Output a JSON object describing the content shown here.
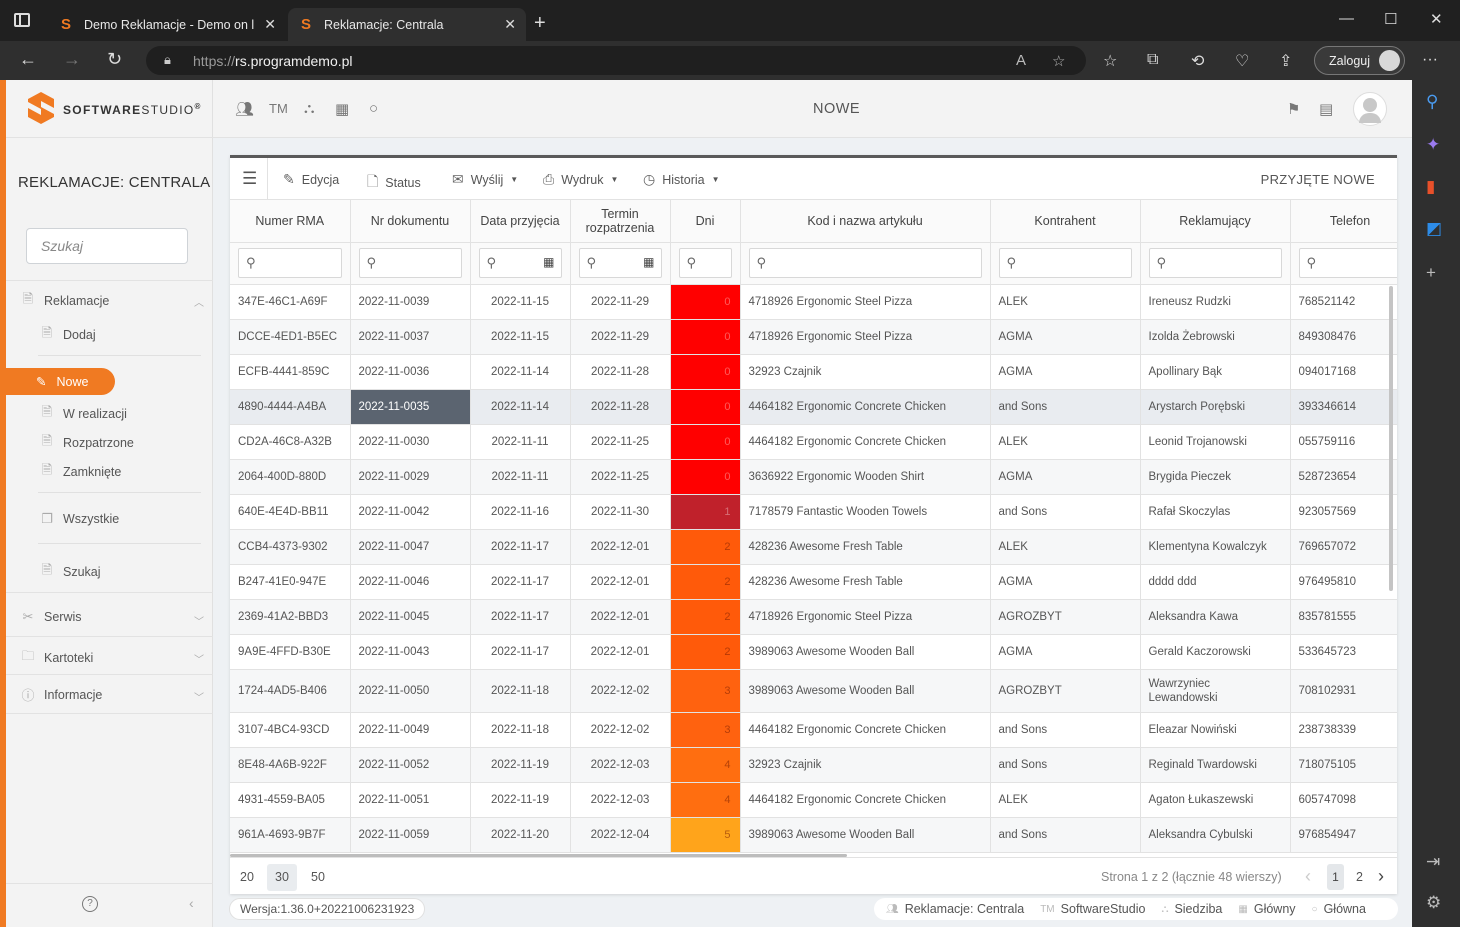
{
  "browser": {
    "tabs": [
      {
        "title": "Demo Reklamacje - Demo on lin"
      },
      {
        "title": "Reklamacje: Centrala"
      }
    ],
    "url_protocol": "https://",
    "url_host": "rs.programdemo.pl",
    "login_label": "Zaloguj"
  },
  "brand": {
    "name_bold": "SOFTWARE",
    "name_light": "STUDIO",
    "reg": "®"
  },
  "sidebar": {
    "title": "REKLAMACJE: CENTRALA",
    "search_placeholder": "Szukaj",
    "reklamacje": "Reklamacje",
    "dodaj": "Dodaj",
    "nowe": "Nowe",
    "w_realizacji": "W realizacji",
    "rozpatrzone": "Rozpatrzone",
    "zamkniete": "Zamknięte",
    "wszystkie": "Wszystkie",
    "szukaj": "Szukaj",
    "serwis": "Serwis",
    "kartoteki": "Kartoteki",
    "informacje": "Informacje"
  },
  "topbar": {
    "tm_label": "TM",
    "title": "NOWE"
  },
  "toolbar": {
    "edycja": "Edycja",
    "status": "Status",
    "wyslij": "Wyślij",
    "wydruk": "Wydruk",
    "historia": "Historia",
    "right_label": "PRZYJĘTE NOWE"
  },
  "columns": [
    "Numer RMA",
    "Nr dokumentu",
    "Data przyjęcia",
    "Termin rozpatrzenia",
    "Dni",
    "Kod i nazwa artykułu",
    "Kontrahent",
    "Reklamujący",
    "Telefon"
  ],
  "colors": {
    "accent": "#f07a22",
    "days_0": "#ff0000",
    "days_1": "#c0212b",
    "days_2": "#ff5a0a",
    "days_3": "#ff620f",
    "days_4": "#ff6e10",
    "days_5": "#ffa41b"
  },
  "rows": [
    {
      "rma": "347E-46C1-A69F",
      "doc": "2022-11-0039",
      "date": "2022-11-15",
      "due": "2022-11-29",
      "days": "0",
      "item": "4718926 Ergonomic Steel Pizza",
      "client": "ALEK",
      "person": "Ireneusz Rudzki",
      "phone": "768521142"
    },
    {
      "rma": "DCCE-4ED1-B5EC",
      "doc": "2022-11-0037",
      "date": "2022-11-15",
      "due": "2022-11-29",
      "days": "0",
      "item": "4718926 Ergonomic Steel Pizza",
      "client": "AGMA",
      "person": "Izolda Żebrowski",
      "phone": "849308476"
    },
    {
      "rma": "ECFB-4441-859C",
      "doc": "2022-11-0036",
      "date": "2022-11-14",
      "due": "2022-11-28",
      "days": "0",
      "item": "32923 Czajnik",
      "client": "AGMA",
      "person": "Apollinary Bąk",
      "phone": "094017168"
    },
    {
      "rma": "4890-4444-A4BA",
      "doc": "2022-11-0035",
      "date": "2022-11-14",
      "due": "2022-11-28",
      "days": "0",
      "item": "4464182 Ergonomic Concrete Chicken",
      "client": "and Sons",
      "person": "Arystarch Porębski",
      "phone": "393346614"
    },
    {
      "rma": "CD2A-46C8-A32B",
      "doc": "2022-11-0030",
      "date": "2022-11-11",
      "due": "2022-11-25",
      "days": "0",
      "item": "4464182 Ergonomic Concrete Chicken",
      "client": "ALEK",
      "person": "Leonid Trojanowski",
      "phone": "055759116"
    },
    {
      "rma": "2064-400D-880D",
      "doc": "2022-11-0029",
      "date": "2022-11-11",
      "due": "2022-11-25",
      "days": "0",
      "item": "3636922 Ergonomic Wooden Shirt",
      "client": "AGMA",
      "person": "Brygida Pieczek",
      "phone": "528723654"
    },
    {
      "rma": "640E-4E4D-BB11",
      "doc": "2022-11-0042",
      "date": "2022-11-16",
      "due": "2022-11-30",
      "days": "1",
      "item": "7178579 Fantastic Wooden Towels",
      "client": "and Sons",
      "person": "Rafał Skoczylas",
      "phone": "923057569"
    },
    {
      "rma": "CCB4-4373-9302",
      "doc": "2022-11-0047",
      "date": "2022-11-17",
      "due": "2022-12-01",
      "days": "2",
      "item": "428236 Awesome Fresh Table",
      "client": "ALEK",
      "person": "Klementyna Kowalczyk",
      "phone": "769657072"
    },
    {
      "rma": "B247-41E0-947E",
      "doc": "2022-11-0046",
      "date": "2022-11-17",
      "due": "2022-12-01",
      "days": "2",
      "item": "428236 Awesome Fresh Table",
      "client": "AGMA",
      "person": "dddd ddd",
      "phone": "976495810"
    },
    {
      "rma": "2369-41A2-BBD3",
      "doc": "2022-11-0045",
      "date": "2022-11-17",
      "due": "2022-12-01",
      "days": "2",
      "item": "4718926 Ergonomic Steel Pizza",
      "client": "AGROZBYT",
      "person": "Aleksandra Kawa",
      "phone": "835781555"
    },
    {
      "rma": "9A9E-4FFD-B30E",
      "doc": "2022-11-0043",
      "date": "2022-11-17",
      "due": "2022-12-01",
      "days": "2",
      "item": "3989063 Awesome Wooden Ball",
      "client": "AGMA",
      "person": "Gerald Kaczorowski",
      "phone": "533645723"
    },
    {
      "rma": "1724-4AD5-B406",
      "doc": "2022-11-0050",
      "date": "2022-11-18",
      "due": "2022-12-02",
      "days": "3",
      "item": "3989063 Awesome Wooden Ball",
      "client": "AGROZBYT",
      "person": "Wawrzyniec Lewandowski",
      "phone": "708102931"
    },
    {
      "rma": "3107-4BC4-93CD",
      "doc": "2022-11-0049",
      "date": "2022-11-18",
      "due": "2022-12-02",
      "days": "3",
      "item": "4464182 Ergonomic Concrete Chicken",
      "client": "and Sons",
      "person": "Eleazar Nowiński",
      "phone": "238738339"
    },
    {
      "rma": "8E48-4A6B-922F",
      "doc": "2022-11-0052",
      "date": "2022-11-19",
      "due": "2022-12-03",
      "days": "4",
      "item": "32923 Czajnik",
      "client": "and Sons",
      "person": "Reginald Twardowski",
      "phone": "718075105"
    },
    {
      "rma": "4931-4559-BA05",
      "doc": "2022-11-0051",
      "date": "2022-11-19",
      "due": "2022-12-03",
      "days": "4",
      "item": "4464182 Ergonomic Concrete Chicken",
      "client": "ALEK",
      "person": "Agaton Łukaszewski",
      "phone": "605747098"
    },
    {
      "rma": "961A-4693-9B7F",
      "doc": "2022-11-0059",
      "date": "2022-11-20",
      "due": "2022-12-04",
      "days": "5",
      "item": "3989063 Awesome Wooden Ball",
      "client": "and Sons",
      "person": "Aleksandra Cybulski",
      "phone": "976854947"
    }
  ],
  "pager": {
    "size_20": "20",
    "size_30": "30",
    "size_50": "50",
    "info": "Strona 1 z 2 (łącznie 48 wierszy)",
    "page_1": "1",
    "page_2": "2"
  },
  "statusbar": {
    "version": "Wersja:1.36.0+20221006231923",
    "reklamacje": "Reklamacje: Centrala",
    "company": "SoftwareStudio",
    "siedziba": "Siedziba",
    "glowny": "Główny",
    "glowna": "Główna"
  }
}
